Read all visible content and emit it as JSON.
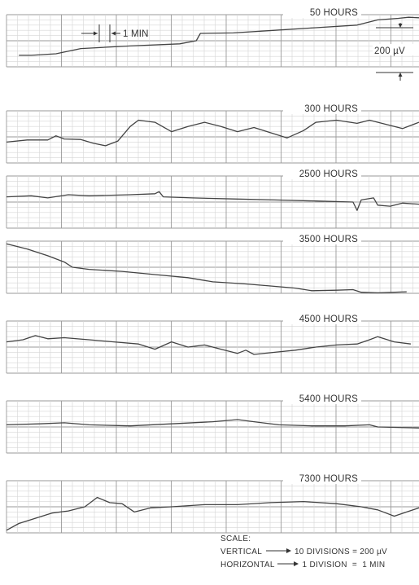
{
  "strips": [
    {
      "label": "50 HOURS",
      "trace": [
        [
          0.03,
          0.78
        ],
        [
          0.06,
          0.78
        ],
        [
          0.12,
          0.75
        ],
        [
          0.18,
          0.65
        ],
        [
          0.3,
          0.6
        ],
        [
          0.42,
          0.56
        ],
        [
          0.46,
          0.5
        ],
        [
          0.47,
          0.36
        ],
        [
          0.55,
          0.35
        ],
        [
          0.65,
          0.3
        ],
        [
          0.75,
          0.25
        ],
        [
          0.85,
          0.2
        ],
        [
          0.9,
          0.1
        ],
        [
          0.95,
          0.07
        ],
        [
          0.975,
          0.05
        ],
        [
          1.0,
          0.06
        ]
      ]
    },
    {
      "label": "300 HOURS",
      "trace": [
        [
          0.0,
          0.6
        ],
        [
          0.05,
          0.56
        ],
        [
          0.1,
          0.56
        ],
        [
          0.12,
          0.48
        ],
        [
          0.14,
          0.54
        ],
        [
          0.18,
          0.55
        ],
        [
          0.21,
          0.62
        ],
        [
          0.24,
          0.67
        ],
        [
          0.27,
          0.58
        ],
        [
          0.3,
          0.3
        ],
        [
          0.32,
          0.18
        ],
        [
          0.36,
          0.22
        ],
        [
          0.4,
          0.4
        ],
        [
          0.44,
          0.3
        ],
        [
          0.48,
          0.22
        ],
        [
          0.52,
          0.3
        ],
        [
          0.56,
          0.4
        ],
        [
          0.6,
          0.32
        ],
        [
          0.64,
          0.42
        ],
        [
          0.68,
          0.52
        ],
        [
          0.72,
          0.38
        ],
        [
          0.75,
          0.22
        ],
        [
          0.8,
          0.18
        ],
        [
          0.85,
          0.24
        ],
        [
          0.88,
          0.18
        ],
        [
          0.92,
          0.26
        ],
        [
          0.96,
          0.34
        ],
        [
          1.0,
          0.22
        ]
      ]
    },
    {
      "label": "2500 HOURS",
      "trace": [
        [
          0.0,
          0.4
        ],
        [
          0.06,
          0.38
        ],
        [
          0.1,
          0.42
        ],
        [
          0.15,
          0.36
        ],
        [
          0.2,
          0.38
        ],
        [
          0.3,
          0.36
        ],
        [
          0.36,
          0.34
        ],
        [
          0.37,
          0.3
        ],
        [
          0.38,
          0.4
        ],
        [
          0.45,
          0.42
        ],
        [
          0.55,
          0.44
        ],
        [
          0.65,
          0.46
        ],
        [
          0.75,
          0.48
        ],
        [
          0.84,
          0.5
        ],
        [
          0.85,
          0.66
        ],
        [
          0.86,
          0.46
        ],
        [
          0.89,
          0.42
        ],
        [
          0.9,
          0.56
        ],
        [
          0.93,
          0.58
        ],
        [
          0.96,
          0.52
        ],
        [
          1.0,
          0.54
        ]
      ]
    },
    {
      "label": "3500 HOURS",
      "trace": [
        [
          0.0,
          0.05
        ],
        [
          0.05,
          0.15
        ],
        [
          0.1,
          0.28
        ],
        [
          0.14,
          0.4
        ],
        [
          0.16,
          0.5
        ],
        [
          0.2,
          0.54
        ],
        [
          0.28,
          0.58
        ],
        [
          0.36,
          0.64
        ],
        [
          0.44,
          0.7
        ],
        [
          0.5,
          0.78
        ],
        [
          0.58,
          0.82
        ],
        [
          0.64,
          0.86
        ],
        [
          0.7,
          0.9
        ],
        [
          0.74,
          0.95
        ],
        [
          0.8,
          0.94
        ],
        [
          0.84,
          0.93
        ],
        [
          0.86,
          0.98
        ],
        [
          0.9,
          0.99
        ],
        [
          0.97,
          0.97
        ]
      ]
    },
    {
      "label": "4500 HOURS",
      "trace": [
        [
          0.0,
          0.4
        ],
        [
          0.04,
          0.36
        ],
        [
          0.07,
          0.28
        ],
        [
          0.1,
          0.34
        ],
        [
          0.14,
          0.32
        ],
        [
          0.2,
          0.36
        ],
        [
          0.26,
          0.4
        ],
        [
          0.32,
          0.44
        ],
        [
          0.36,
          0.54
        ],
        [
          0.4,
          0.4
        ],
        [
          0.44,
          0.5
        ],
        [
          0.48,
          0.46
        ],
        [
          0.52,
          0.54
        ],
        [
          0.56,
          0.62
        ],
        [
          0.58,
          0.56
        ],
        [
          0.6,
          0.64
        ],
        [
          0.65,
          0.6
        ],
        [
          0.7,
          0.56
        ],
        [
          0.75,
          0.5
        ],
        [
          0.8,
          0.46
        ],
        [
          0.85,
          0.44
        ],
        [
          0.88,
          0.36
        ],
        [
          0.9,
          0.3
        ],
        [
          0.94,
          0.4
        ],
        [
          0.98,
          0.44
        ]
      ]
    },
    {
      "label": "5400 HOURS",
      "trace": [
        [
          0.0,
          0.46
        ],
        [
          0.08,
          0.44
        ],
        [
          0.14,
          0.42
        ],
        [
          0.2,
          0.46
        ],
        [
          0.3,
          0.48
        ],
        [
          0.4,
          0.44
        ],
        [
          0.5,
          0.4
        ],
        [
          0.56,
          0.36
        ],
        [
          0.6,
          0.4
        ],
        [
          0.66,
          0.46
        ],
        [
          0.74,
          0.48
        ],
        [
          0.82,
          0.48
        ],
        [
          0.88,
          0.46
        ],
        [
          0.9,
          0.5
        ],
        [
          1.0,
          0.52
        ]
      ]
    },
    {
      "label": "7300 HOURS",
      "trace": [
        [
          0.0,
          0.95
        ],
        [
          0.03,
          0.82
        ],
        [
          0.07,
          0.72
        ],
        [
          0.11,
          0.62
        ],
        [
          0.15,
          0.58
        ],
        [
          0.19,
          0.5
        ],
        [
          0.22,
          0.32
        ],
        [
          0.25,
          0.42
        ],
        [
          0.28,
          0.44
        ],
        [
          0.31,
          0.6
        ],
        [
          0.35,
          0.52
        ],
        [
          0.4,
          0.5
        ],
        [
          0.48,
          0.46
        ],
        [
          0.56,
          0.46
        ],
        [
          0.64,
          0.42
        ],
        [
          0.72,
          0.4
        ],
        [
          0.8,
          0.44
        ],
        [
          0.86,
          0.5
        ],
        [
          0.9,
          0.56
        ],
        [
          0.94,
          0.68
        ],
        [
          0.97,
          0.6
        ],
        [
          1.0,
          0.52
        ]
      ]
    }
  ],
  "annotations": {
    "time_marker": "1 MIN",
    "amplitude_marker": "200 µV"
  },
  "scale": {
    "heading": "SCALE:",
    "vertical_label": "VERTICAL",
    "vertical_value": "10 DIVISIONS = 200 µV",
    "horizontal_label": "HORIZONTAL",
    "horizontal_value": "1 DIVISION  =  1 MIN"
  },
  "colors": {
    "grid_fine": "#d6d6d6",
    "grid_major": "#9a9a9a",
    "trace": "#444444",
    "text": "#333333"
  }
}
